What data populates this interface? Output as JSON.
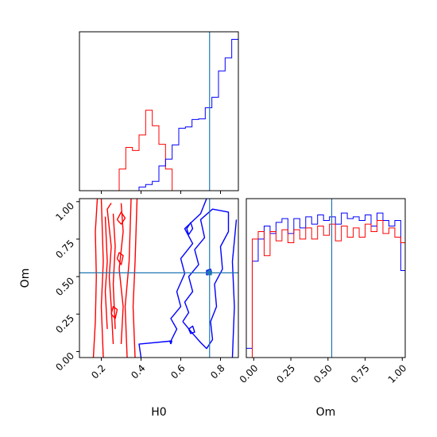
{
  "chart_data": {
    "type": "corner",
    "parameters": [
      "H0",
      "Om"
    ],
    "truths": {
      "H0": 0.745,
      "Om": 0.525
    },
    "colors": {
      "series_a": "#0000ff",
      "series_b": "#ff0000",
      "truth": "#1f77b4"
    },
    "axes": {
      "H0": {
        "xlabel": "H0",
        "xlim": [
          0.09,
          0.89
        ],
        "ticks": [
          0.2,
          0.4,
          0.6,
          0.8
        ],
        "tick_labels": [
          "0.2",
          "0.4",
          "0.6",
          "0.8"
        ]
      },
      "Om": {
        "xlabel": "Om",
        "ylabel": "Om",
        "xlim": [
          -0.05,
          1.02
        ],
        "ylim": [
          -0.04,
          1.02
        ],
        "ticks": [
          0.0,
          0.25,
          0.5,
          0.75,
          1.0
        ],
        "tick_labels": [
          "0.00",
          "0.25",
          "0.50",
          "0.75",
          "1.00"
        ]
      }
    },
    "hist_H0": {
      "bins": {
        "start": 0.09,
        "width": 0.033333,
        "count": 24
      },
      "series": [
        {
          "color": "series_b",
          "values": [
            0,
            0,
            0,
            0,
            0,
            0,
            0.07,
            0.14,
            0.13,
            0.18,
            0.26,
            0.21,
            0.15,
            0.07,
            0,
            0,
            0,
            0,
            0,
            0,
            0,
            0,
            0,
            0
          ]
        },
        {
          "color": "series_a",
          "values": [
            0,
            0,
            0,
            0,
            0,
            0,
            0,
            0,
            0,
            0.012,
            0.02,
            0.03,
            0.08,
            0.102,
            0.148,
            0.202,
            0.206,
            0.23,
            0.232,
            0.268,
            0.302,
            0.387,
            0.429,
            0.489
          ]
        }
      ]
    },
    "hist_Om": {
      "bins": {
        "start": -0.05,
        "width": 0.04,
        "count": 27
      },
      "series": [
        {
          "color": "series_a",
          "values": [
            0.05,
            0.52,
            0.64,
            0.71,
            0.67,
            0.73,
            0.75,
            0.67,
            0.75,
            0.7,
            0.76,
            0.72,
            0.77,
            0.74,
            0.76,
            0.72,
            0.78,
            0.75,
            0.76,
            0.74,
            0.77,
            0.71,
            0.78,
            0.74,
            0.71,
            0.74,
            0.47
          ]
        },
        {
          "color": "series_b",
          "values": [
            0,
            0.64,
            0.68,
            0.55,
            0.68,
            0.63,
            0.69,
            0.62,
            0.69,
            0.64,
            0.7,
            0.64,
            0.71,
            0.66,
            0.72,
            0.63,
            0.71,
            0.65,
            0.7,
            0.65,
            0.72,
            0.68,
            0.74,
            0.67,
            0.7,
            0.65,
            0.62
          ]
        }
      ]
    },
    "contours": {
      "series_b": [
        [
          [
            0.16,
            -0.04
          ],
          [
            0.17,
            0.2
          ],
          [
            0.175,
            0.5
          ],
          [
            0.17,
            0.8
          ],
          [
            0.18,
            1.02
          ]
        ],
        [
          [
            0.21,
            -0.04
          ],
          [
            0.2,
            0.3
          ],
          [
            0.21,
            0.6
          ],
          [
            0.2,
            1.02
          ]
        ],
        [
          [
            0.33,
            -0.04
          ],
          [
            0.32,
            0.3
          ],
          [
            0.34,
            0.6
          ],
          [
            0.35,
            1.02
          ]
        ],
        [
          [
            0.37,
            -0.04
          ],
          [
            0.36,
            0.3
          ],
          [
            0.37,
            0.6
          ],
          [
            0.38,
            1.02
          ]
        ],
        [
          [
            0.26,
            0.05
          ],
          [
            0.25,
            0.3
          ],
          [
            0.24,
            0.5
          ],
          [
            0.25,
            0.7
          ],
          [
            0.23,
            0.95
          ],
          [
            0.25,
            0.99
          ]
        ],
        [
          [
            0.3,
            0.05
          ],
          [
            0.31,
            0.3
          ],
          [
            0.29,
            0.55
          ],
          [
            0.31,
            0.8
          ],
          [
            0.3,
            0.99
          ]
        ],
        [
          [
            0.23,
            0.15
          ],
          [
            0.22,
            0.4
          ],
          [
            0.23,
            0.6
          ],
          [
            0.22,
            0.9
          ]
        ],
        [
          [
            0.27,
            0.15
          ],
          [
            0.26,
            0.45
          ],
          [
            0.27,
            0.7
          ],
          [
            0.26,
            0.92
          ]
        ],
        [
          [
            0.28,
            0.88
          ],
          [
            0.3,
            0.85
          ],
          [
            0.32,
            0.89
          ],
          [
            0.3,
            0.93
          ],
          [
            0.28,
            0.88
          ]
        ],
        [
          [
            0.28,
            0.62
          ],
          [
            0.3,
            0.58
          ],
          [
            0.31,
            0.64
          ],
          [
            0.29,
            0.66
          ],
          [
            0.28,
            0.62
          ]
        ],
        [
          [
            0.25,
            0.25
          ],
          [
            0.27,
            0.22
          ],
          [
            0.28,
            0.28
          ],
          [
            0.26,
            0.3
          ],
          [
            0.25,
            0.25
          ]
        ]
      ],
      "series_a": [
        [
          [
            0.4,
            -0.04
          ],
          [
            0.39,
            0.05
          ],
          [
            0.55,
            0.07
          ],
          [
            0.58,
            0.15
          ],
          [
            0.55,
            0.22
          ],
          [
            0.6,
            0.3
          ],
          [
            0.58,
            0.4
          ],
          [
            0.62,
            0.52
          ],
          [
            0.6,
            0.62
          ],
          [
            0.66,
            0.72
          ],
          [
            0.62,
            0.82
          ],
          [
            0.7,
            0.92
          ],
          [
            0.73,
            1.02
          ]
        ],
        [
          [
            0.61,
            0.2
          ],
          [
            0.64,
            0.26
          ],
          [
            0.62,
            0.33
          ],
          [
            0.66,
            0.4
          ],
          [
            0.64,
            0.5
          ],
          [
            0.69,
            0.58
          ],
          [
            0.67,
            0.68
          ],
          [
            0.72,
            0.76
          ],
          [
            0.7,
            0.88
          ],
          [
            0.76,
            0.95
          ],
          [
            0.84,
            0.93
          ],
          [
            0.84,
            0.8
          ],
          [
            0.8,
            0.7
          ],
          [
            0.81,
            0.55
          ],
          [
            0.77,
            0.45
          ],
          [
            0.78,
            0.3
          ],
          [
            0.75,
            0.2
          ],
          [
            0.76,
            0.08
          ],
          [
            0.73,
            0.02
          ],
          [
            0.7,
            0.06
          ],
          [
            0.66,
            0.12
          ],
          [
            0.61,
            0.2
          ]
        ],
        [
          [
            0.86,
            -0.04
          ],
          [
            0.87,
            0.3
          ],
          [
            0.86,
            0.6
          ],
          [
            0.88,
            0.88
          ]
        ],
        [
          [
            0.64,
            0.15
          ],
          [
            0.66,
            0.17
          ],
          [
            0.67,
            0.13
          ],
          [
            0.65,
            0.12
          ],
          [
            0.64,
            0.15
          ]
        ],
        [
          [
            0.64,
            0.78
          ],
          [
            0.66,
            0.82
          ],
          [
            0.65,
            0.86
          ],
          [
            0.63,
            0.82
          ],
          [
            0.64,
            0.78
          ]
        ],
        [
          [
            0.73,
            0.51
          ],
          [
            0.755,
            0.53
          ],
          [
            0.75,
            0.55
          ],
          [
            0.73,
            0.54
          ],
          [
            0.73,
            0.51
          ]
        ],
        [
          [
            0.55,
            0.05
          ],
          [
            0.555,
            0.07
          ],
          [
            0.545,
            0.07
          ],
          [
            0.55,
            0.05
          ]
        ]
      ]
    }
  }
}
